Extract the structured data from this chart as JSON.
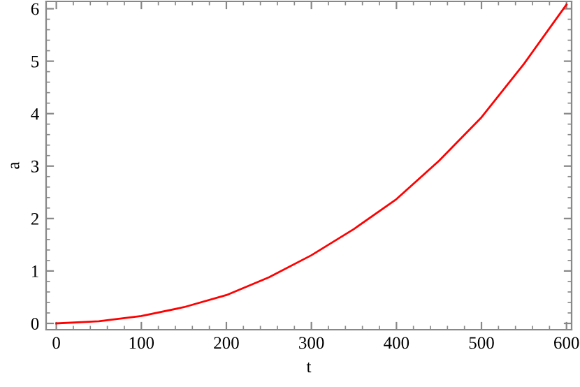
{
  "chart_data": {
    "type": "line",
    "xlabel": "t",
    "ylabel": "a",
    "x": [
      0,
      50,
      100,
      150,
      200,
      250,
      300,
      350,
      400,
      450,
      500,
      550,
      600
    ],
    "series": [
      {
        "color": "#ff0000",
        "values": [
          0,
          0.04,
          0.14,
          0.31,
          0.54,
          0.88,
          1.3,
          1.8,
          2.37,
          3.1,
          3.93,
          4.95,
          6.08
        ]
      }
    ],
    "xlim": [
      -12,
      606
    ],
    "ylim": [
      -0.12,
      6.14
    ],
    "xticks": [
      0,
      100,
      200,
      300,
      400,
      500,
      600
    ],
    "yticks": [
      0,
      1,
      2,
      3,
      4,
      5,
      6
    ],
    "grid": false,
    "legend": false,
    "marker": "none",
    "line_style": "solid"
  }
}
